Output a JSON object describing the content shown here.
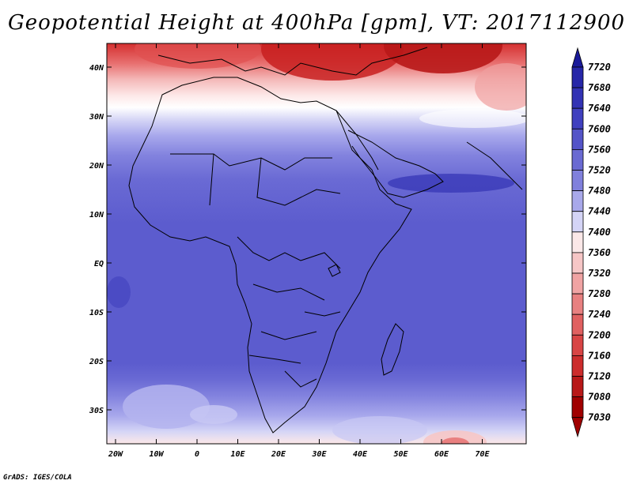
{
  "title": "Geopotential Height at 400hPa [gpm], VT: 2017112900",
  "credit": "GrADS: IGES/COLA",
  "map": {
    "lat_labels": [
      "40N",
      "30N",
      "20N",
      "10N",
      "EQ",
      "10S",
      "20S",
      "30S"
    ],
    "lon_labels": [
      "20W",
      "10W",
      "0",
      "10E",
      "20E",
      "30E",
      "40E",
      "50E",
      "60E",
      "70E"
    ]
  },
  "colorbar": {
    "levels": [
      "7720",
      "7680",
      "7640",
      "7600",
      "7560",
      "7520",
      "7480",
      "7440",
      "7400",
      "7360",
      "7320",
      "7280",
      "7240",
      "7200",
      "7160",
      "7120",
      "7080",
      "7030"
    ],
    "colors": [
      "#1a1a9a",
      "#2626a8",
      "#3232b4",
      "#4040bf",
      "#5454c8",
      "#6a6ad2",
      "#8080dc",
      "#a8a8ea",
      "#d4d4f6",
      "#fbe8e8",
      "#f6c6c6",
      "#f0a3a3",
      "#e88080",
      "#e06060",
      "#d84444",
      "#cc2c2c",
      "#b81818",
      "#a00000"
    ]
  }
}
